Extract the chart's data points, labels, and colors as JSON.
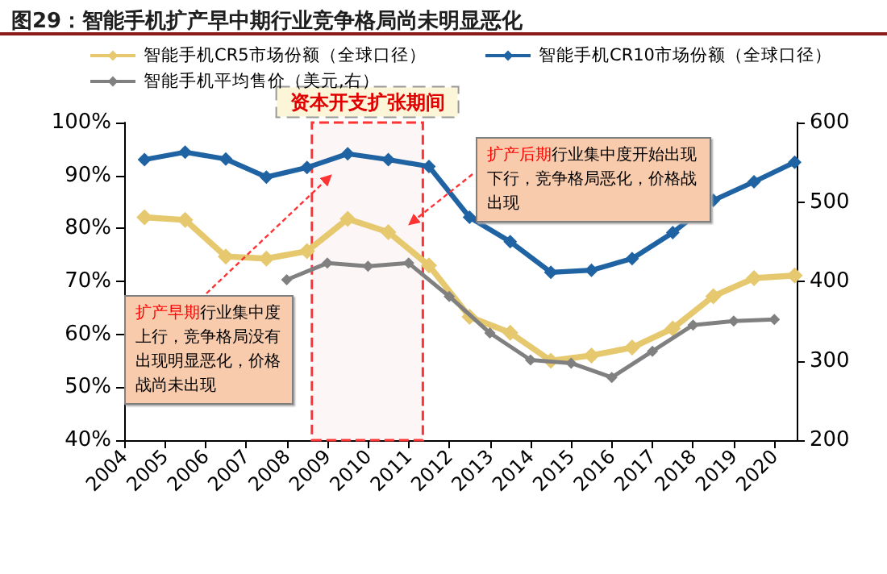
{
  "chart_data": {
    "type": "line",
    "title": "图29：智能手机扩产早中期行业竞争格局尚未明显恶化",
    "xlim": [
      2004,
      2020.55
    ],
    "xticks": [
      2004,
      2005,
      2006,
      2007,
      2008,
      2009,
      2010,
      2011,
      2012,
      2013,
      2014,
      2015,
      2016,
      2017,
      2018,
      2019,
      2020
    ],
    "ylim": [
      40,
      100
    ],
    "yticks": [
      {
        "value": 40,
        "label": "40%"
      },
      {
        "value": 50,
        "label": "50%"
      },
      {
        "value": 60,
        "label": "60%"
      },
      {
        "value": 70,
        "label": "70%"
      },
      {
        "value": 80,
        "label": "80%"
      },
      {
        "value": 90,
        "label": "90%"
      },
      {
        "value": 100,
        "label": "100%"
      }
    ],
    "y2lim": [
      200,
      600
    ],
    "y2ticks": [
      200,
      300,
      400,
      500,
      600
    ],
    "legend": "top",
    "marker": "diamond",
    "series": [
      {
        "name": "智能手机CR5市场份额（全球口径）",
        "color": "#e6c86e",
        "x": [
          2004.5,
          2005.5,
          2006.5,
          2007.5,
          2008.5,
          2009.5,
          2010.5,
          2011.5,
          2012.5,
          2013.5,
          2014.5,
          2015.5,
          2016.5,
          2017.5,
          2018.5,
          2019.5,
          2020.5
        ],
        "values": [
          82.1,
          81.6,
          74.7,
          74.3,
          75.7,
          81.8,
          79.3,
          73.0,
          63.3,
          60.3,
          55.0,
          56.0,
          57.5,
          61.1,
          67.2,
          70.6,
          71.1
        ]
      },
      {
        "name": "智能手机CR10市场份额（全球口径）",
        "color": "#1f63a3",
        "x": [
          2004.5,
          2005.5,
          2006.5,
          2007.5,
          2008.5,
          2009.5,
          2010.5,
          2011.5,
          2012.5,
          2013.5,
          2014.5,
          2015.5,
          2016.5,
          2017.5,
          2018.5,
          2019.5,
          2020.5
        ],
        "values": [
          93.0,
          94.4,
          93.1,
          89.7,
          91.5,
          94.1,
          93.0,
          91.7,
          82.1,
          77.5,
          71.7,
          72.1,
          74.3,
          79.2,
          85.3,
          88.8,
          92.5
        ]
      },
      {
        "name": "智能手机平均售价（美元,右）",
        "color": "#808080",
        "axis": "y2",
        "x": [
          2008,
          2009,
          2010,
          2011,
          2012,
          2013,
          2014,
          2015,
          2016,
          2017,
          2018,
          2019,
          2020
        ],
        "values": [
          402,
          423,
          419,
          423,
          381,
          335,
          301,
          297,
          279,
          312,
          345,
          350,
          352
        ]
      }
    ],
    "bands": [
      {
        "axis": "x",
        "from": 2008.62,
        "to": 2011.35,
        "label": "资本开支扩张期间",
        "color": "#ff3333"
      }
    ],
    "annotations": [
      "扩产早期行业集中度上行，竞争格局没有出现明显恶化，价格战尚未出现",
      "扩产后期行业集中度开始出现下行，竞争格局恶化，价格战出现"
    ]
  }
}
